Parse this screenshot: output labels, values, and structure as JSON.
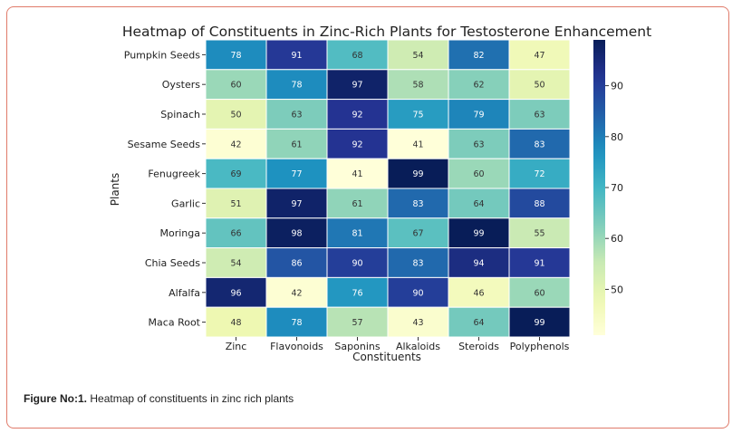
{
  "figure_caption": {
    "label": "Figure No:1.",
    "text": " Heatmap of constituents in zinc rich plants"
  },
  "colors": {
    "frame_border": "#e07b6a",
    "cell_border": "#ffffff",
    "colormap": "YlGnBu"
  },
  "chart_data": {
    "type": "heatmap",
    "title": "Heatmap of Constituents in Zinc-Rich Plants for Testosterone Enhancement",
    "xlabel": "Constituents",
    "ylabel": "Plants",
    "columns": [
      "Zinc",
      "Flavonoids",
      "Saponins",
      "Alkaloids",
      "Steroids",
      "Polyphenols"
    ],
    "rows": [
      "Pumpkin Seeds",
      "Oysters",
      "Spinach",
      "Sesame Seeds",
      "Fenugreek",
      "Garlic",
      "Moringa",
      "Chia Seeds",
      "Alfalfa",
      "Maca Root"
    ],
    "values": [
      [
        78,
        91,
        68,
        54,
        82,
        47
      ],
      [
        60,
        78,
        97,
        58,
        62,
        50
      ],
      [
        50,
        63,
        92,
        75,
        79,
        63
      ],
      [
        42,
        61,
        92,
        41,
        63,
        83
      ],
      [
        69,
        77,
        41,
        99,
        60,
        72
      ],
      [
        51,
        97,
        61,
        83,
        64,
        88
      ],
      [
        66,
        98,
        81,
        67,
        99,
        55
      ],
      [
        54,
        86,
        90,
        83,
        94,
        91
      ],
      [
        96,
        42,
        76,
        90,
        46,
        60
      ],
      [
        48,
        78,
        57,
        43,
        64,
        99
      ]
    ],
    "colorbar": {
      "range": [
        41,
        99
      ],
      "ticks": [
        50,
        60,
        70,
        80,
        90
      ]
    },
    "annotated": true,
    "grid": false
  }
}
